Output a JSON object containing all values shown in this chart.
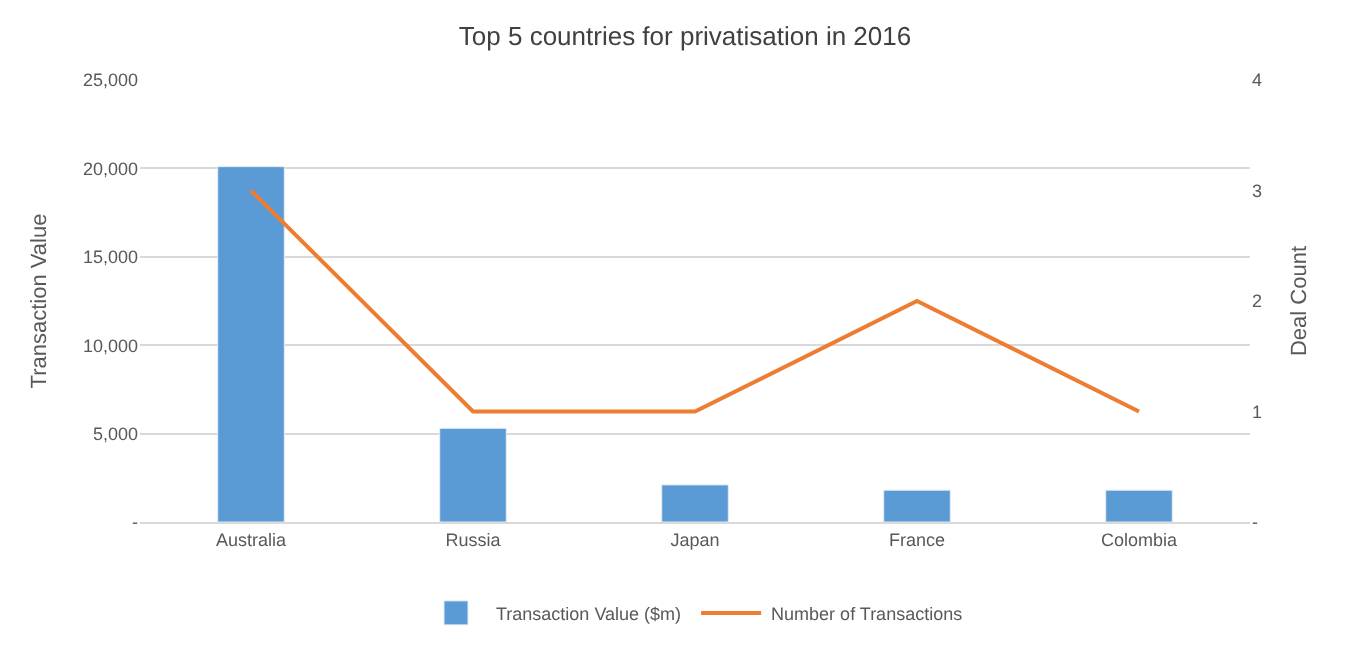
{
  "chart_data": {
    "type": "bar",
    "title": "Top 5 countries for privatisation in 2016",
    "categories": [
      "Australia",
      "Russia",
      "Japan",
      "France",
      "Colombia"
    ],
    "series": [
      {
        "name": "Transaction Value ($m)",
        "color": "#5b9bd5",
        "values": [
          20100,
          5300,
          2100,
          1800,
          1800
        ]
      },
      {
        "name": "Number of Transactions",
        "color": "#ed7d31",
        "type": "line",
        "axis": "y2",
        "values": [
          3,
          1,
          1,
          2,
          1
        ]
      }
    ],
    "ylabel": "Transaction Value",
    "y2label": "Deal Count",
    "ylim": [
      0,
      25000
    ],
    "yticks": [
      {
        "value": 0,
        "label": "-"
      },
      {
        "value": 5000,
        "label": "5,000"
      },
      {
        "value": 10000,
        "label": "10,000"
      },
      {
        "value": 15000,
        "label": "15,000"
      },
      {
        "value": 20000,
        "label": "20,000"
      },
      {
        "value": 25000,
        "label": "25,000"
      }
    ],
    "y2lim": [
      0,
      4
    ],
    "y2ticks": [
      {
        "value": 0,
        "label": "-"
      },
      1,
      2,
      3,
      4
    ],
    "grid": "y",
    "legend": "bottom",
    "marker": "none",
    "line_style": "solid"
  }
}
